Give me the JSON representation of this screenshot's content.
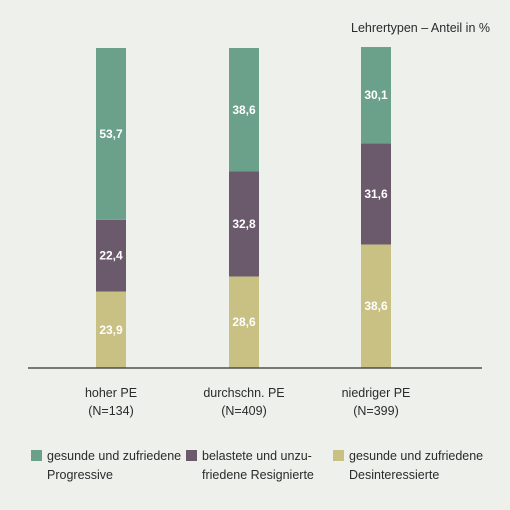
{
  "chart_data": {
    "type": "bar",
    "stacked": true,
    "title": "Lehrertypen – Anteil in %",
    "categories": [
      {
        "name": "hoher PE",
        "n": "(N=134)"
      },
      {
        "name": "durchschn. PE",
        "n": "(N=409)"
      },
      {
        "name": "niedriger PE",
        "n": "(N=399)"
      }
    ],
    "series": [
      {
        "name": [
          "gesunde und zufriedene",
          "Desinteressierte"
        ],
        "color": "#c9c083",
        "values": [
          23.9,
          28.6,
          38.6
        ],
        "labels": [
          "23,9",
          "28,6",
          "38,6"
        ]
      },
      {
        "name": [
          "belastete und unzu-",
          "friedene Resignierte"
        ],
        "color": "#6b5a6b",
        "values": [
          22.4,
          32.8,
          31.6
        ],
        "labels": [
          "22,4",
          "32,8",
          "31,6"
        ]
      },
      {
        "name": [
          "gesunde und zufriedene",
          "Progressive"
        ],
        "color": "#6ba08a",
        "values": [
          53.7,
          38.6,
          30.1
        ],
        "labels": [
          "53,7",
          "38,6",
          "30,1"
        ]
      }
    ],
    "legend_order": [
      2,
      1,
      0
    ],
    "ylim": [
      0,
      100
    ],
    "grid": false,
    "legend_position": "bottom"
  }
}
